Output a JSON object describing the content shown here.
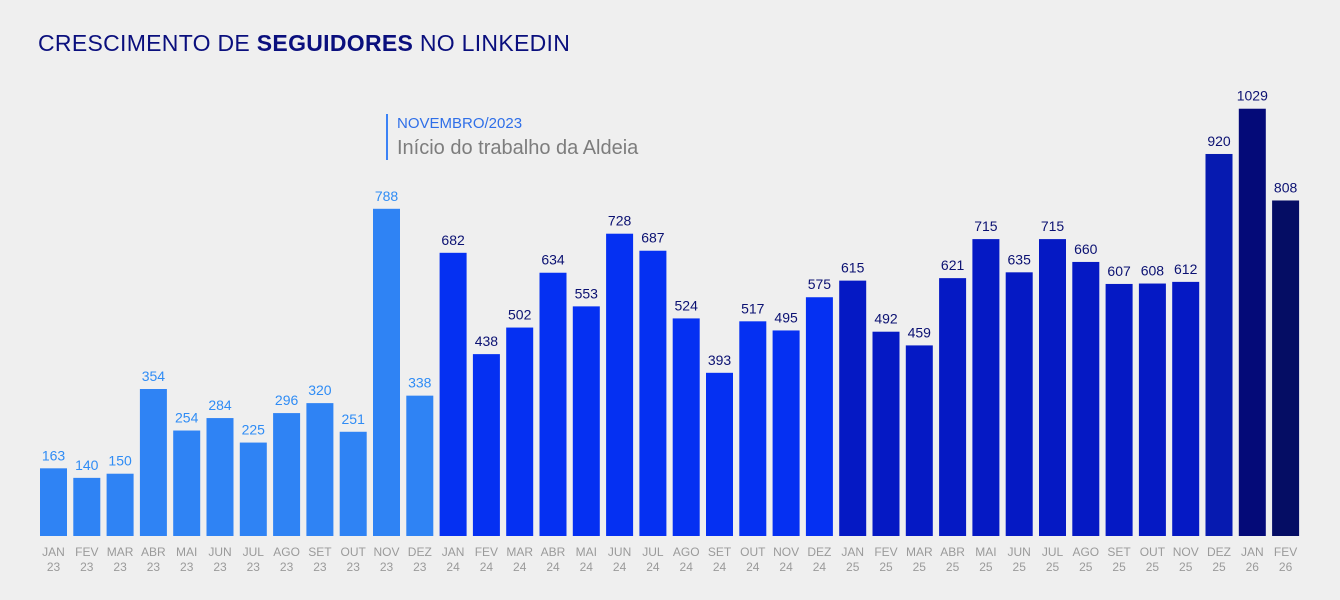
{
  "title": {
    "prefix": "CRESCIMENTO DE ",
    "bold": "SEGUIDORES",
    "suffix": " NO LINKEDIN"
  },
  "annotation": {
    "date": "NOVEMBRO/2023",
    "text": "Início do trabalho da Aldeia"
  },
  "colors": {
    "background": "#efefef",
    "value_2023": "#2f8cf5",
    "label_2023": "#2f8cf5",
    "value_later": "#0b1172",
    "axis_label": "#9a9a9a",
    "year_colors": {
      "23": "#2f83f4",
      "24": "#0530f2",
      "25": "#0519c4",
      "DEZ 25": "#061ab0",
      "JAN 26": "#040a78",
      "FEV 26": "#050d64"
    }
  },
  "chart_data": {
    "type": "bar",
    "title": "CRESCIMENTO DE SEGUIDORES NO LINKEDIN",
    "xlabel": "",
    "ylabel": "",
    "ylim": [
      0,
      1050
    ],
    "grid": false,
    "categories": [
      {
        "month": "JAN",
        "year": "23"
      },
      {
        "month": "FEV",
        "year": "23"
      },
      {
        "month": "MAR",
        "year": "23"
      },
      {
        "month": "ABR",
        "year": "23"
      },
      {
        "month": "MAI",
        "year": "23"
      },
      {
        "month": "JUN",
        "year": "23"
      },
      {
        "month": "JUL",
        "year": "23"
      },
      {
        "month": "AGO",
        "year": "23"
      },
      {
        "month": "SET",
        "year": "23"
      },
      {
        "month": "OUT",
        "year": "23"
      },
      {
        "month": "NOV",
        "year": "23"
      },
      {
        "month": "DEZ",
        "year": "23"
      },
      {
        "month": "JAN",
        "year": "24"
      },
      {
        "month": "FEV",
        "year": "24"
      },
      {
        "month": "MAR",
        "year": "24"
      },
      {
        "month": "ABR",
        "year": "24"
      },
      {
        "month": "MAI",
        "year": "24"
      },
      {
        "month": "JUN",
        "year": "24"
      },
      {
        "month": "JUL",
        "year": "24"
      },
      {
        "month": "AGO",
        "year": "24"
      },
      {
        "month": "SET",
        "year": "24"
      },
      {
        "month": "OUT",
        "year": "24"
      },
      {
        "month": "NOV",
        "year": "24"
      },
      {
        "month": "DEZ",
        "year": "24"
      },
      {
        "month": "JAN",
        "year": "25"
      },
      {
        "month": "FEV",
        "year": "25"
      },
      {
        "month": "MAR",
        "year": "25"
      },
      {
        "month": "ABR",
        "year": "25"
      },
      {
        "month": "MAI",
        "year": "25"
      },
      {
        "month": "JUN",
        "year": "25"
      },
      {
        "month": "JUL",
        "year": "25"
      },
      {
        "month": "AGO",
        "year": "25"
      },
      {
        "month": "SET",
        "year": "25"
      },
      {
        "month": "OUT",
        "year": "25"
      },
      {
        "month": "NOV",
        "year": "25"
      },
      {
        "month": "DEZ",
        "year": "25"
      },
      {
        "month": "JAN",
        "year": "26"
      },
      {
        "month": "FEV",
        "year": "26"
      }
    ],
    "values": [
      163,
      140,
      150,
      354,
      254,
      284,
      225,
      296,
      320,
      251,
      788,
      338,
      682,
      438,
      502,
      634,
      553,
      728,
      687,
      524,
      393,
      517,
      495,
      575,
      615,
      492,
      459,
      621,
      715,
      635,
      715,
      660,
      607,
      608,
      612,
      920,
      1029,
      808
    ]
  }
}
